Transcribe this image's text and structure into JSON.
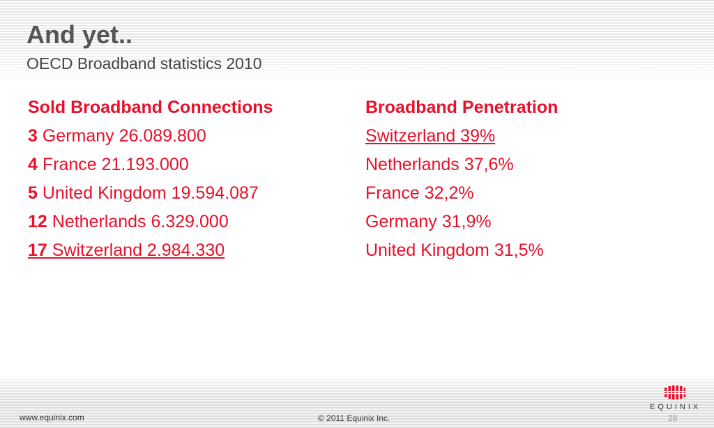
{
  "slide": {
    "title": "And yet..",
    "subtitle": "OECD Broadband statistics 2010"
  },
  "left_column": {
    "heading": "Sold Broadband Connections",
    "rows": [
      {
        "rank": "3",
        "text": " Germany 26.089.800"
      },
      {
        "rank": "4",
        "text": " France 21.193.000"
      },
      {
        "rank": "5",
        "text": " United Kingdom 19.594.087"
      },
      {
        "rank": "12",
        "text": " Netherlands 6.329.000"
      },
      {
        "rank": "17",
        "text": " Switzerland 2.984.330"
      }
    ]
  },
  "right_column": {
    "heading": "Broadband Penetration",
    "rows": [
      "Switzerland 39%",
      "Netherlands 37,6%",
      "France 32,2%",
      "Germany 31,9%",
      "United Kingdom 31,5%"
    ]
  },
  "footer": {
    "url": "www.equinix.com",
    "copyright": "© 2011 Equinix Inc.",
    "page_number": "28",
    "logo_text": "EQUINIX"
  },
  "colors": {
    "accent": "#e8102a",
    "title_gray": "#555555"
  }
}
